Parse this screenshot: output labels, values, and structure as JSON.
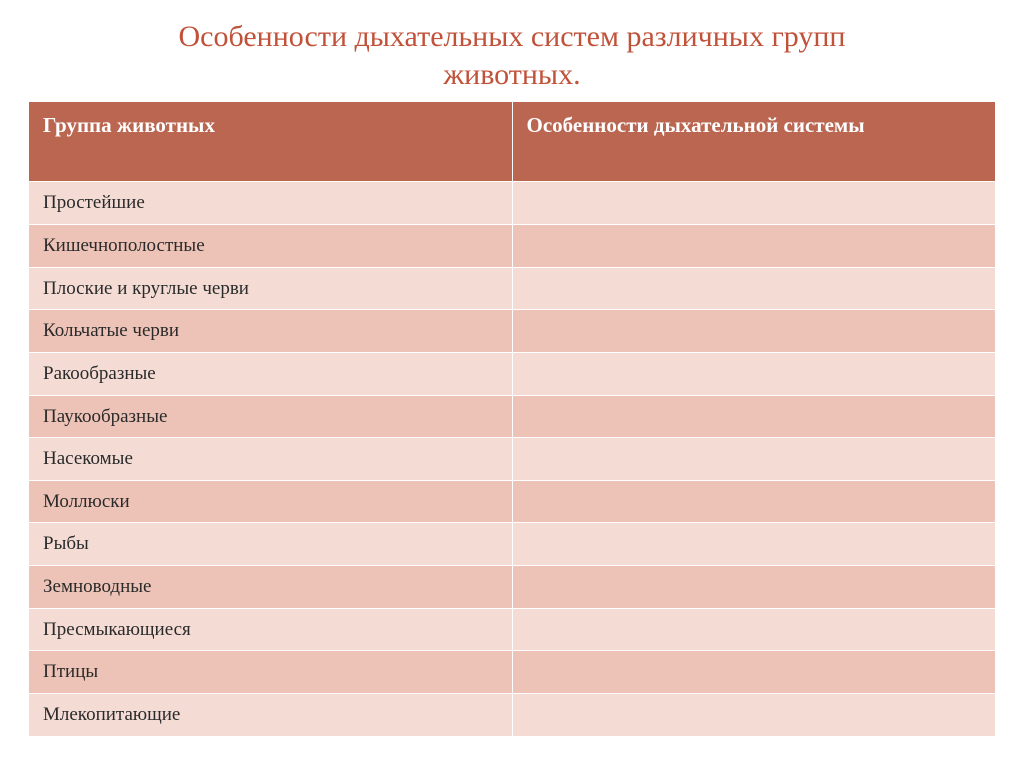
{
  "title": {
    "line1": "Особенности дыхательных систем различных групп",
    "line2": "животных",
    "trailing_dot": "."
  },
  "table": {
    "headers": {
      "col1": "Группа животных",
      "col2": "Особенности дыхательной системы"
    },
    "rows": [
      {
        "group": "Простейшие",
        "feature": ""
      },
      {
        "group": "Кишечнополостные",
        "feature": ""
      },
      {
        "group": "Плоские и круглые черви",
        "feature": ""
      },
      {
        "group": "Кольчатые черви",
        "feature": ""
      },
      {
        "group": "Ракообразные",
        "feature": ""
      },
      {
        "group": "Паукообразные",
        "feature": ""
      },
      {
        "group": "Насекомые",
        "feature": ""
      },
      {
        "group": "Моллюски",
        "feature": ""
      },
      {
        "group": "Рыбы",
        "feature": ""
      },
      {
        "group": "Земноводные",
        "feature": ""
      },
      {
        "group": "Пресмыкающиеся",
        "feature": ""
      },
      {
        "group": "Птицы",
        "feature": ""
      },
      {
        "group": "Млекопитающие",
        "feature": ""
      }
    ]
  },
  "style": {
    "title_color": "#c1523a",
    "header_bg": "#ba6651",
    "header_fg": "#ffffff",
    "row_odd_bg": "#f4dcd5",
    "row_even_bg": "#eec3b7",
    "cell_border": "#ffffff",
    "title_fontsize": 30,
    "header_fontsize": 21,
    "cell_fontsize": 19
  }
}
